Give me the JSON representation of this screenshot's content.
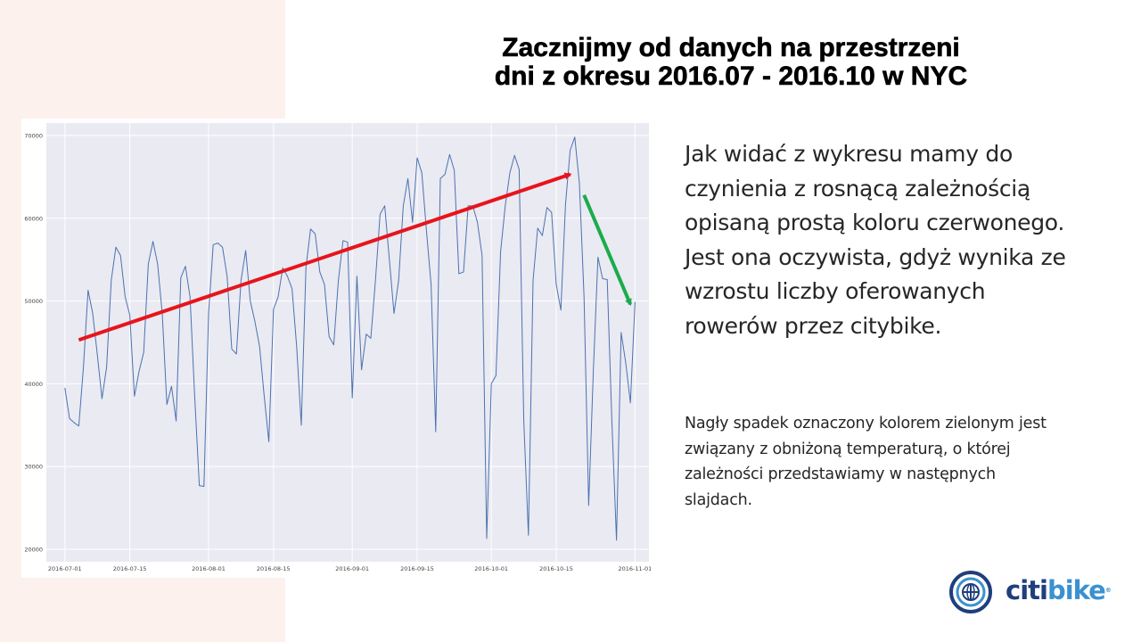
{
  "slide": {
    "title_line1": "Zacznijmy od danych na przestrzeni",
    "title_line2": "dni z okresu 2016.07 - 2016.10 w NYC",
    "body_main": "Jak widać z wykresu mamy do czynienia z rosnącą zależnością opisaną prostą koloru czerwonego. Jest ona oczywista, gdyż wynika ze wzrostu liczby oferowanych rowerów przez citybike.",
    "body_sub": "Nagły spadek oznaczony kolorem zielonym jest związany z obniżoną temperaturą, o której zależności przedstawiamy w następnych slajdach.",
    "logo_part1": "citi",
    "logo_part2": "bike",
    "logo_tm": "®"
  },
  "colors": {
    "side_panel": "#fdf1ed",
    "plot_bg": "#eaeaf2",
    "line": "#4c72b0",
    "trend_arrow": "#e8141b",
    "drop_arrow": "#1aac4c",
    "logo_dark": "#1f3f7c",
    "logo_light": "#3b90d0"
  },
  "chart_data": {
    "type": "line",
    "title": "",
    "xlabel": "",
    "ylabel": "",
    "xlim": [
      "2016-06-27",
      "2016-11-04"
    ],
    "ylim": [
      18500,
      71500
    ],
    "grid": true,
    "xticks": [
      "2016-07-01",
      "2016-07-15",
      "2016-08-01",
      "2016-08-15",
      "2016-09-01",
      "2016-09-15",
      "2016-10-01",
      "2016-10-15",
      "2016-11-01"
    ],
    "yticks": [
      20000,
      30000,
      40000,
      50000,
      60000,
      70000
    ],
    "start_date": "2016-07-01",
    "values": [
      39500,
      35800,
      35300,
      34900,
      42000,
      51300,
      48500,
      43500,
      38200,
      42000,
      52500,
      56500,
      55500,
      50500,
      48300,
      38500,
      41500,
      43800,
      54500,
      57200,
      54500,
      48500,
      37500,
      39700,
      35500,
      52800,
      54200,
      50500,
      38500,
      27700,
      27600,
      48500,
      56800,
      57000,
      56500,
      53000,
      44200,
      43600,
      52500,
      56100,
      50000,
      47500,
      44500,
      38500,
      33000,
      49000,
      50500,
      54000,
      53000,
      51500,
      44500,
      35000,
      54000,
      58700,
      58100,
      53500,
      52000,
      45700,
      44700,
      52500,
      57300,
      57100,
      38300,
      53000,
      41700,
      46000,
      45500,
      52500,
      60500,
      61500,
      55000,
      48500,
      52500,
      61500,
      64800,
      59500,
      67300,
      65500,
      58500,
      52000,
      34200,
      64800,
      65300,
      67700,
      65800,
      53300,
      53500,
      61500,
      61500,
      59500,
      55500,
      21300,
      40000,
      41000,
      56000,
      61500,
      65500,
      67600,
      65900,
      35500,
      21700,
      52500,
      58800,
      57900,
      61300,
      60700,
      52000,
      48900,
      61700,
      68200,
      69800,
      64200,
      50500,
      25300,
      41500,
      55300,
      52700,
      52600,
      35500,
      21100,
      46200,
      42500,
      37700,
      49900
    ],
    "annotations": [
      {
        "type": "arrow",
        "color": "red",
        "from": [
          "2016-07-04",
          45300
        ],
        "to": [
          "2016-10-18",
          65300
        ]
      },
      {
        "type": "arrow",
        "color": "green",
        "from": [
          "2016-10-21",
          62800
        ],
        "to": [
          "2016-10-31",
          49600
        ]
      }
    ]
  }
}
